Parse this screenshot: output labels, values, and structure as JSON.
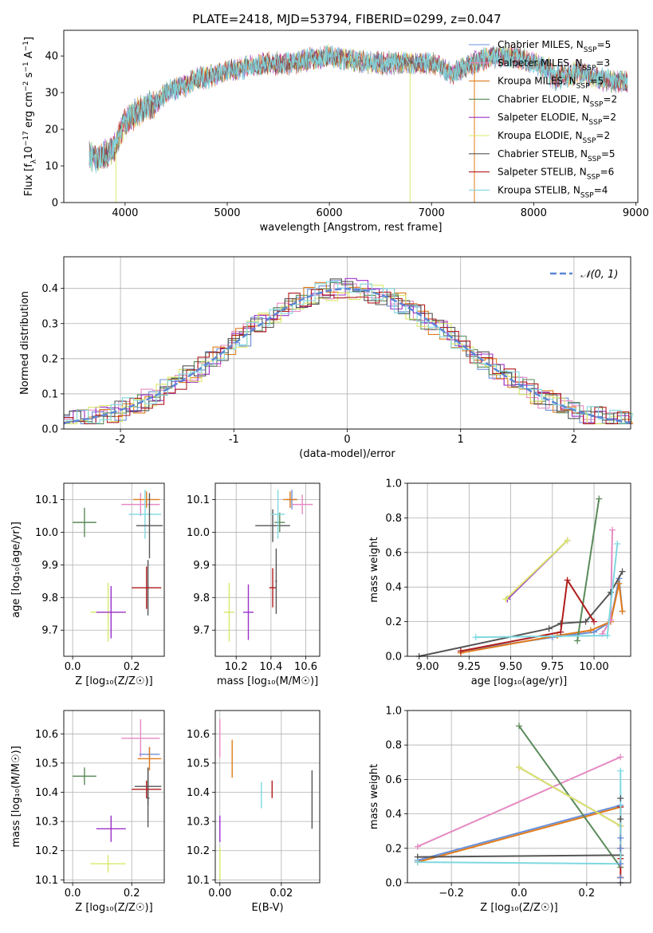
{
  "figure": {
    "title": "PLATE=2418, MJD=53794, FIBERID=0299, z=0.047"
  },
  "colors": {
    "Chabrier MILES": "#6a8fd8",
    "Salpeter MILES": "#e58ac3",
    "Kroupa MILES": "#e07b1a",
    "Chabrier ELODIE": "#5a8a5a",
    "Salpeter ELODIE": "#9b30c8",
    "Kroupa ELODIE": "#d9e86a",
    "Chabrier STELIB": "#555555",
    "Salpeter STELIB": "#b01c1c",
    "Kroupa STELIB": "#7fd8e0"
  },
  "chart_data": [
    {
      "id": "spectrum",
      "type": "line",
      "xlabel": "wavelength [Angstrom, rest frame]",
      "ylabel": "Flux [f_λ10^-17 erg cm^-2 s^-1 A^-1]",
      "xlim": [
        3400,
        9020
      ],
      "ylim": [
        0,
        47
      ],
      "xticks": [
        4000,
        5000,
        6000,
        7000,
        8000,
        9000
      ],
      "yticks": [
        0,
        10,
        20,
        30,
        40
      ],
      "legend_position": "top-right",
      "legend": [
        {
          "label": "Chabrier MILES, N",
          "sub": "SSP",
          "suffix": "=5",
          "key": "Chabrier MILES"
        },
        {
          "label": "Salpeter MILES, N",
          "sub": "SSP",
          "suffix": "=3",
          "key": "Salpeter MILES"
        },
        {
          "label": "Kroupa MILES, N",
          "sub": "SSP",
          "suffix": "=5",
          "key": "Kroupa MILES"
        },
        {
          "label": "Chabrier ELODIE, N",
          "sub": "SSP",
          "suffix": "=2",
          "key": "Chabrier ELODIE"
        },
        {
          "label": "Salpeter ELODIE, N",
          "sub": "SSP",
          "suffix": "=2",
          "key": "Salpeter ELODIE"
        },
        {
          "label": "Kroupa ELODIE, N",
          "sub": "SSP",
          "suffix": "=2",
          "key": "Kroupa ELODIE"
        },
        {
          "label": "Chabrier STELIB, N",
          "sub": "SSP",
          "suffix": "=5",
          "key": "Chabrier STELIB"
        },
        {
          "label": "Salpeter STELIB, N",
          "sub": "SSP",
          "suffix": "=6",
          "key": "Salpeter STELIB"
        },
        {
          "label": "Kroupa STELIB, N",
          "sub": "SSP",
          "suffix": "=4",
          "key": "Kroupa STELIB"
        }
      ],
      "continuum": {
        "x": [
          3650,
          3700,
          3800,
          3900,
          4000,
          4100,
          4200,
          4300,
          4400,
          4500,
          4600,
          4700,
          4800,
          4900,
          5000,
          5200,
          5400,
          5600,
          5800,
          6000,
          6200,
          6400,
          6600,
          6800,
          7000,
          7100,
          7200,
          7400,
          7600,
          7800,
          8000,
          8200,
          8400,
          8600,
          8800,
          8920
        ],
        "y": [
          13,
          12,
          13,
          15,
          22,
          24,
          26,
          27,
          30,
          31,
          32,
          34,
          34,
          35,
          36,
          37,
          38,
          38,
          39,
          40,
          39,
          38,
          38,
          38,
          38,
          37,
          35,
          38,
          40,
          40,
          38,
          36,
          36,
          34,
          33,
          33
        ]
      },
      "dips": [
        {
          "x": 3910,
          "y": 0
        },
        {
          "x": 6790,
          "y": 0
        },
        {
          "x": 7420,
          "y": 0
        }
      ]
    },
    {
      "id": "residuals",
      "type": "step",
      "xlabel": "(data-model)/error",
      "ylabel": "Normed distribution",
      "xlim": [
        -2.5,
        2.5
      ],
      "ylim": [
        0,
        0.49
      ],
      "xticks": [
        -2,
        -1,
        0,
        1,
        2
      ],
      "yticks": [
        0.0,
        0.1,
        0.2,
        0.3,
        0.4
      ],
      "legend_position": "top-right",
      "legend_label": "𝒩(0, 1)",
      "gaussian": {
        "mean": 0,
        "sigma": 1
      }
    },
    {
      "id": "z-age",
      "type": "errorbar",
      "xlabel": "Z [log₁₀(Z/Z☉)]",
      "ylabel": "age  [log₁₀(age/yr)]",
      "xlim": [
        -0.03,
        0.31
      ],
      "ylim": [
        9.62,
        10.15
      ],
      "xticks": [
        0.0,
        0.2
      ],
      "yticks": [
        9.7,
        9.8,
        9.9,
        10.0,
        10.1
      ],
      "points": [
        {
          "key": "Chabrier ELODIE",
          "x": 0.04,
          "y": 10.03,
          "xe": 0.04,
          "ye": 0.045
        },
        {
          "key": "Kroupa ELODIE",
          "x": 0.12,
          "y": 9.755,
          "xe": 0.06,
          "ye": 0.09
        },
        {
          "key": "Salpeter ELODIE",
          "x": 0.13,
          "y": 9.755,
          "xe": 0.05,
          "ye": 0.08
        },
        {
          "key": "Salpeter MILES",
          "x": 0.23,
          "y": 10.085,
          "xe": 0.065,
          "ye": 0.035
        },
        {
          "key": "Kroupa MILES",
          "x": 0.25,
          "y": 10.1,
          "xe": 0.045,
          "ye": 0.025
        },
        {
          "key": "Kroupa STELIB",
          "x": 0.245,
          "y": 10.055,
          "xe": 0.055,
          "ye": 0.075
        },
        {
          "key": "Chabrier STELIB",
          "x": 0.26,
          "y": 10.02,
          "xe": 0.045,
          "ye": 0.1
        },
        {
          "key": "Chabrier STELIB",
          "x": 0.255,
          "y": 9.83,
          "xe": 0.005,
          "ye": 0.085
        },
        {
          "key": "Salpeter STELIB",
          "x": 0.25,
          "y": 9.83,
          "xe": 0.05,
          "ye": 0.065
        }
      ]
    },
    {
      "id": "mass-age",
      "type": "errorbar",
      "xlabel": "mass [log₁₀(M/M☉)]",
      "ylabel": "",
      "xlim": [
        10.08,
        10.68
      ],
      "ylim": [
        9.62,
        10.15
      ],
      "xticks": [
        10.2,
        10.4,
        10.6
      ],
      "yticks": [
        9.7,
        9.8,
        9.9,
        10.0,
        10.1
      ],
      "points": [
        {
          "key": "Kroupa ELODIE",
          "x": 10.16,
          "y": 9.755,
          "xe": 0.03,
          "ye": 0.09
        },
        {
          "key": "Salpeter ELODIE",
          "x": 10.27,
          "y": 9.755,
          "xe": 0.03,
          "ye": 0.085
        },
        {
          "key": "Chabrier STELIB",
          "x": 10.41,
          "y": 10.02,
          "xe": 0.1,
          "ye": 0.05
        },
        {
          "key": "Chabrier ELODIE",
          "x": 10.45,
          "y": 10.03,
          "xe": 0.03,
          "ye": 0.03
        },
        {
          "key": "Salpeter STELIB",
          "x": 10.41,
          "y": 9.83,
          "xe": 0.02,
          "ye": 0.06
        },
        {
          "key": "Chabrier STELIB",
          "x": 10.43,
          "y": 9.85,
          "xe": 0.005,
          "ye": 0.1
        },
        {
          "key": "Kroupa STELIB",
          "x": 10.44,
          "y": 10.055,
          "xe": 0.04,
          "ye": 0.075
        },
        {
          "key": "Chabrier MILES",
          "x": 10.52,
          "y": 10.1,
          "xe": 0.03,
          "ye": 0.03
        },
        {
          "key": "Kroupa MILES",
          "x": 10.51,
          "y": 10.1,
          "xe": 0.04,
          "ye": 0.025
        },
        {
          "key": "Salpeter MILES",
          "x": 10.58,
          "y": 10.085,
          "xe": 0.06,
          "ye": 0.03
        }
      ]
    },
    {
      "id": "age-weight",
      "type": "line",
      "xlabel": "age  [log₁₀(age/yr)]",
      "ylabel": "mass weight",
      "xlim": [
        8.88,
        10.22
      ],
      "ylim": [
        0,
        1
      ],
      "xticks": [
        9.0,
        9.25,
        9.5,
        9.75,
        10.0
      ],
      "xticklabels": [
        "9.00",
        "9.25",
        "9.50",
        "9.75",
        "10.00"
      ],
      "yticks": [
        0.0,
        0.2,
        0.4,
        0.6,
        0.8,
        1.0
      ],
      "series": [
        {
          "key": "Chabrier MILES",
          "x": [
            9.2,
            9.75,
            10.0,
            10.1,
            10.15,
            10.17
          ],
          "y": [
            0.03,
            0.11,
            0.14,
            0.2,
            0.45,
            0.26
          ]
        },
        {
          "key": "Kroupa MILES",
          "x": [
            9.2,
            9.78,
            9.98,
            10.1,
            10.15,
            10.17
          ],
          "y": [
            0.02,
            0.12,
            0.15,
            0.2,
            0.42,
            0.26
          ]
        },
        {
          "key": "Salpeter MILES",
          "x": [
            10.05,
            10.1,
            10.11
          ],
          "y": [
            0.13,
            0.21,
            0.73
          ]
        },
        {
          "key": "Chabrier ELODIE",
          "x": [
            9.9,
            10.03
          ],
          "y": [
            0.09,
            0.91
          ]
        },
        {
          "key": "Salpeter ELODIE",
          "x": [
            9.48,
            9.84
          ],
          "y": [
            0.33,
            0.67
          ]
        },
        {
          "key": "Kroupa ELODIE",
          "x": [
            9.47,
            9.84
          ],
          "y": [
            0.33,
            0.67
          ]
        },
        {
          "key": "Chabrier STELIB",
          "x": [
            8.95,
            9.73,
            9.8,
            9.95,
            10.1,
            10.17
          ],
          "y": [
            0.0,
            0.16,
            0.19,
            0.2,
            0.37,
            0.49
          ]
        },
        {
          "key": "Salpeter STELIB",
          "x": [
            9.2,
            9.8,
            9.84,
            10.0
          ],
          "y": [
            0.03,
            0.14,
            0.44,
            0.2
          ]
        },
        {
          "key": "Kroupa STELIB",
          "x": [
            9.29,
            10.08,
            10.14
          ],
          "y": [
            0.11,
            0.12,
            0.65
          ]
        }
      ]
    },
    {
      "id": "z-mass",
      "type": "errorbar",
      "xlabel": "Z [log₁₀(Z/Z☉)]",
      "ylabel": "mass [log₁₀(M/M☉)]",
      "xlim": [
        -0.03,
        0.31
      ],
      "ylim": [
        10.09,
        10.68
      ],
      "xticks": [
        0.0,
        0.2
      ],
      "yticks": [
        10.1,
        10.2,
        10.3,
        10.4,
        10.5,
        10.6
      ],
      "points": [
        {
          "key": "Chabrier ELODIE",
          "x": 0.04,
          "y": 10.455,
          "xe": 0.04,
          "ye": 0.03
        },
        {
          "key": "Salpeter ELODIE",
          "x": 0.13,
          "y": 10.275,
          "xe": 0.05,
          "ye": 0.045
        },
        {
          "key": "Kroupa ELODIE",
          "x": 0.12,
          "y": 10.155,
          "xe": 0.06,
          "ye": 0.03
        },
        {
          "key": "Salpeter MILES",
          "x": 0.23,
          "y": 10.585,
          "xe": 0.065,
          "ye": 0.065
        },
        {
          "key": "Chabrier MILES",
          "x": 0.26,
          "y": 10.53,
          "xe": 0.035,
          "ye": 0.025
        },
        {
          "key": "Kroupa MILES",
          "x": 0.26,
          "y": 10.515,
          "xe": 0.04,
          "ye": 0.04
        },
        {
          "key": "Chabrier STELIB",
          "x": 0.255,
          "y": 10.42,
          "xe": 0.045,
          "ye": 0.065
        },
        {
          "key": "Chabrier STELIB",
          "x": 0.255,
          "y": 10.38,
          "xe": 0.005,
          "ye": 0.1
        },
        {
          "key": "Salpeter STELIB",
          "x": 0.25,
          "y": 10.41,
          "xe": 0.05,
          "ye": 0.03
        }
      ]
    },
    {
      "id": "ebv-mass",
      "type": "errorbar",
      "xlabel": "E(B-V)",
      "ylabel": "",
      "xlim": [
        -0.0015,
        0.0325
      ],
      "ylim": [
        10.09,
        10.68
      ],
      "xticks": [
        0.0,
        0.02
      ],
      "xticklabels": [
        "0.00",
        "0.02"
      ],
      "yticks": [
        10.1,
        10.2,
        10.3,
        10.4,
        10.5,
        10.6
      ],
      "points": [
        {
          "key": "Salpeter MILES",
          "x": 0.0,
          "y": 10.585,
          "xe": 0,
          "ye": 0.065
        },
        {
          "key": "Kroupa MILES",
          "x": 0.004,
          "y": 10.515,
          "xe": 0,
          "ye": 0.065
        },
        {
          "key": "Salpeter ELODIE",
          "x": 0.0,
          "y": 10.275,
          "xe": 0,
          "ye": 0.045
        },
        {
          "key": "Kroupa ELODIE",
          "x": 0.0,
          "y": 10.155,
          "xe": 0,
          "ye": 0.055
        },
        {
          "key": "Kroupa STELIB",
          "x": 0.0135,
          "y": 10.39,
          "xe": 0,
          "ye": 0.045
        },
        {
          "key": "Salpeter STELIB",
          "x": 0.017,
          "y": 10.41,
          "xe": 0,
          "ye": 0.03
        },
        {
          "key": "Chabrier STELIB",
          "x": 0.03,
          "y": 10.375,
          "xe": 0,
          "ye": 0.1
        }
      ]
    },
    {
      "id": "z-weight",
      "type": "line",
      "xlabel": "Z [log₁₀(Z/Z☉)]",
      "ylabel": "mass weight",
      "xlim": [
        -0.33,
        0.33
      ],
      "ylim": [
        0,
        1
      ],
      "xticks": [
        -0.2,
        0.0,
        0.2
      ],
      "xticklabels": [
        "−0.2",
        "0.0",
        "0.2"
      ],
      "yticks": [
        0.0,
        0.2,
        0.4,
        0.6,
        0.8,
        1.0
      ],
      "series": [
        {
          "key": "Chabrier MILES",
          "x": [
            -0.3,
            0.3
          ],
          "y": [
            0.13,
            0.45
          ]
        },
        {
          "key": "Kroupa MILES",
          "x": [
            -0.3,
            0.3
          ],
          "y": [
            0.12,
            0.44
          ]
        },
        {
          "key": "Salpeter MILES",
          "x": [
            -0.3,
            0.3
          ],
          "y": [
            0.21,
            0.73
          ]
        },
        {
          "key": "Chabrier ELODIE",
          "x": [
            0.0,
            0.3
          ],
          "y": [
            0.91,
            0.09
          ]
        },
        {
          "key": "Salpeter ELODIE",
          "x": [
            0.0,
            0.3
          ],
          "y": [
            0.67,
            0.33
          ]
        },
        {
          "key": "Kroupa ELODIE",
          "x": [
            0.0,
            0.3
          ],
          "y": [
            0.67,
            0.33
          ]
        },
        {
          "key": "Chabrier STELIB",
          "x": [
            -0.3,
            0.3
          ],
          "y": [
            0.15,
            0.16
          ]
        },
        {
          "key": "Salpeter STELIB",
          "x": [
            0.3,
            0.3,
            0.3
          ],
          "y": [
            0.03,
            0.14,
            0.44
          ]
        },
        {
          "key": "Kroupa STELIB",
          "x": [
            -0.3,
            0.3,
            0.3
          ],
          "y": [
            0.12,
            0.11,
            0.65
          ]
        }
      ],
      "markers": [
        {
          "key": "Chabrier STELIB",
          "x": 0.3,
          "y": [
            0.0,
            0.2,
            0.37,
            0.49
          ]
        },
        {
          "key": "Salpeter STELIB",
          "x": 0.3,
          "y": [
            0.03,
            0.2
          ]
        },
        {
          "key": "Chabrier MILES",
          "x": 0.3,
          "y": [
            0.03,
            0.11,
            0.2,
            0.26
          ]
        }
      ]
    }
  ]
}
